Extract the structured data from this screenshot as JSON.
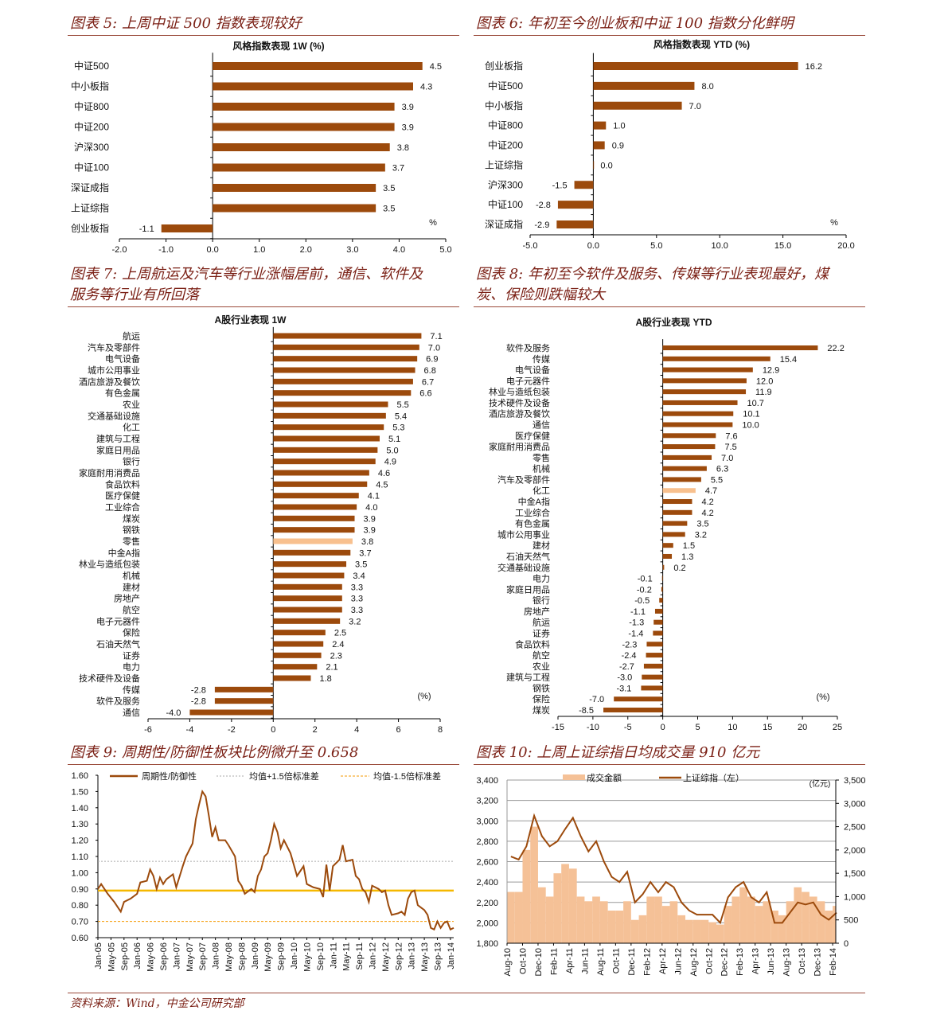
{
  "figures": {
    "f5": {
      "title": "图表 5: 上周中证 500 指数表现较好"
    },
    "f6": {
      "title": "图表 6: 年初至今创业板和中证 100 指数分化鲜明"
    },
    "f7": {
      "title_l1": "图表 7: 上周航运及汽车等行业涨幅居前，通信、软件及",
      "title_l2": "服务等行业有所回落"
    },
    "f8": {
      "title_l1": "图表 8: 年初至今软件及服务、传媒等行业表现最好，煤",
      "title_l2": "炭、保险则跌幅较大"
    },
    "f9": {
      "title": "图表 9: 周期性/防御性板块比例微升至 0.658"
    },
    "f10": {
      "title": "图表 10: 上周上证综指日均成交量 910 亿元"
    }
  },
  "footer": "资料来源：Wind，中金公司研究部",
  "colors": {
    "bar": "#9c4a0c",
    "highlight": "#f8c08e",
    "title": "#7a1f14",
    "mean_line": "#f5b800",
    "minus_line": "#f59a00",
    "plus_line": "#aaaaaa",
    "volume": "#f5c197"
  },
  "chart_data": [
    {
      "type": "bar",
      "orientation": "horizontal",
      "title": "风格指数表现 1W (%)",
      "unit": "%",
      "xlim": [
        -2.0,
        5.0
      ],
      "xticks": [
        "-2.0",
        "-1.0",
        "0.0",
        "1.0",
        "2.0",
        "3.0",
        "4.0",
        "5.0"
      ],
      "categories": [
        "中证500",
        "中小板指",
        "中证800",
        "中证200",
        "沪深300",
        "中证100",
        "深证成指",
        "上证综指",
        "创业板指"
      ],
      "values": [
        4.5,
        4.3,
        3.9,
        3.9,
        3.8,
        3.7,
        3.5,
        3.5,
        -1.1
      ],
      "labels": [
        "4.5",
        "4.3",
        "3.9",
        "3.9",
        "3.8",
        "3.7",
        "3.5",
        "3.5",
        "-1.1"
      ]
    },
    {
      "type": "bar",
      "orientation": "horizontal",
      "title": "风格指数表现 YTD (%)",
      "unit": "%",
      "xlim": [
        -5.0,
        20.0
      ],
      "xticks": [
        "-5.0",
        "0.0",
        "5.0",
        "10.0",
        "15.0",
        "20.0"
      ],
      "categories": [
        "创业板指",
        "中证500",
        "中小板指",
        "中证800",
        "中证200",
        "上证综指",
        "沪深300",
        "中证100",
        "深证成指"
      ],
      "values": [
        16.2,
        8.0,
        7.0,
        1.0,
        0.9,
        0.0,
        -1.5,
        -2.8,
        -2.9
      ],
      "labels": [
        "16.2",
        "8.0",
        "7.0",
        "1.0",
        "0.9",
        "0.0",
        "-1.5",
        "-2.8",
        "-2.9"
      ]
    },
    {
      "type": "bar",
      "orientation": "horizontal",
      "title": "A股行业表现 1W",
      "unit": "(%)",
      "xlim": [
        -6,
        8
      ],
      "xticks": [
        "-6",
        "-4",
        "-2",
        "0",
        "2",
        "4",
        "6",
        "8"
      ],
      "highlight": "零售",
      "categories": [
        "航运",
        "汽车及零部件",
        "电气设备",
        "城市公用事业",
        "酒店旅游及餐饮",
        "有色金属",
        "农业",
        "交通基础设施",
        "化工",
        "建筑与工程",
        "家庭日用品",
        "银行",
        "家庭耐用消费品",
        "食品饮料",
        "医疗保健",
        "工业综合",
        "煤炭",
        "钢铁",
        "零售",
        "中金A指",
        "林业与造纸包装",
        "机械",
        "建材",
        "房地产",
        "航空",
        "电子元器件",
        "保险",
        "石油天然气",
        "证券",
        "电力",
        "技术硬件及设备",
        "传媒",
        "软件及服务",
        "通信"
      ],
      "values": [
        7.1,
        7.0,
        6.9,
        6.8,
        6.7,
        6.6,
        5.5,
        5.4,
        5.3,
        5.1,
        5.0,
        4.9,
        4.6,
        4.5,
        4.1,
        4.0,
        3.9,
        3.9,
        3.8,
        3.7,
        3.5,
        3.4,
        3.3,
        3.3,
        3.3,
        3.2,
        2.5,
        2.4,
        2.3,
        2.1,
        1.8,
        -2.8,
        -2.8,
        -4.0
      ],
      "labels": [
        "7.1",
        "7.0",
        "6.9",
        "6.8",
        "6.7",
        "6.6",
        "5.5",
        "5.4",
        "5.3",
        "5.1",
        "5.0",
        "4.9",
        "4.6",
        "4.5",
        "4.1",
        "4.0",
        "3.9",
        "3.9",
        "3.8",
        "3.7",
        "3.5",
        "3.4",
        "3.3",
        "3.3",
        "3.3",
        "3.2",
        "2.5",
        "2.4",
        "2.3",
        "2.1",
        "1.8",
        "-2.8",
        "-2.8",
        "-4.0"
      ]
    },
    {
      "type": "bar",
      "orientation": "horizontal",
      "title": "A股行业表现 YTD",
      "unit": "(%)",
      "xlim": [
        -15,
        25
      ],
      "xticks": [
        "-15",
        "-10",
        "-5",
        "0",
        "5",
        "10",
        "15",
        "20",
        "25"
      ],
      "highlight": "化工",
      "categories": [
        "软件及服务",
        "传媒",
        "电气设备",
        "电子元器件",
        "林业与造纸包装",
        "技术硬件及设备",
        "酒店旅游及餐饮",
        "通信",
        "医疗保健",
        "家庭耐用消费品",
        "零售",
        "机械",
        "汽车及零部件",
        "化工",
        "中金A指",
        "工业综合",
        "有色金属",
        "城市公用事业",
        "建材",
        "石油天然气",
        "交通基础设施",
        "电力",
        "家庭日用品",
        "银行",
        "房地产",
        "航运",
        "证券",
        "食品饮料",
        "航空",
        "农业",
        "建筑与工程",
        "钢铁",
        "保险",
        "煤炭"
      ],
      "values": [
        22.2,
        15.4,
        12.9,
        12.0,
        11.9,
        10.7,
        10.1,
        10.0,
        7.6,
        7.5,
        7.0,
        6.3,
        5.5,
        4.7,
        4.2,
        4.2,
        3.5,
        3.2,
        1.5,
        1.3,
        0.2,
        -0.1,
        -0.2,
        -0.5,
        -1.1,
        -1.3,
        -1.4,
        -2.3,
        -2.4,
        -2.7,
        -3.0,
        -3.1,
        -7.0,
        -8.5
      ],
      "labels": [
        "22.2",
        "15.4",
        "12.9",
        "12.0",
        "11.9",
        "10.7",
        "10.1",
        "10.0",
        "7.6",
        "7.5",
        "7.0",
        "6.3",
        "5.5",
        "4.7",
        "4.2",
        "4.2",
        "3.5",
        "3.2",
        "1.5",
        "1.3",
        "0.2",
        "-0.1",
        "-0.2",
        "-0.5",
        "-1.1",
        "-1.3",
        "-1.4",
        "-2.3",
        "-2.4",
        "-2.7",
        "-3.0",
        "-3.1",
        "-7.0",
        "-8.5"
      ]
    },
    {
      "type": "line",
      "ylim": [
        0.6,
        1.6
      ],
      "yticks": [
        "0.60",
        "0.70",
        "0.80",
        "0.90",
        "1.00",
        "1.10",
        "1.20",
        "1.30",
        "1.40",
        "1.50",
        "1.60"
      ],
      "xticks": [
        "Jan-05",
        "May-05",
        "Sep-05",
        "Jan-06",
        "May-06",
        "Sep-06",
        "Jan-07",
        "May-07",
        "Sep-07",
        "Jan-08",
        "May-08",
        "Sep-08",
        "Jan-09",
        "May-09",
        "Sep-09",
        "Jan-10",
        "May-10",
        "Sep-10",
        "Jan-11",
        "May-11",
        "Sep-11",
        "Jan-12",
        "May-12",
        "Sep-12",
        "Jan-13",
        "May-13",
        "Sep-13",
        "Jan-14"
      ],
      "legend": [
        "周期性/防御性",
        "均值+1.5倍标准差",
        "均值-1.5倍标准差"
      ],
      "reference_lines": {
        "mean": 0.89,
        "plus_1_5sd": 1.07,
        "minus_1_5sd": 0.7
      },
      "series": [
        {
          "name": "周期性/防御性",
          "x": [
            "2005-01",
            "2005-02",
            "2005-04",
            "2005-06",
            "2005-08",
            "2005-09",
            "2005-11",
            "2006-01",
            "2006-02",
            "2006-04",
            "2006-05",
            "2006-06",
            "2006-07",
            "2006-08",
            "2006-09",
            "2006-10",
            "2006-12",
            "2007-01",
            "2007-03",
            "2007-04",
            "2007-06",
            "2007-07",
            "2007-08",
            "2007-09",
            "2007-10",
            "2007-11",
            "2007-12",
            "2008-01",
            "2008-02",
            "2008-04",
            "2008-05",
            "2008-07",
            "2008-08",
            "2008-09",
            "2008-10",
            "2008-12",
            "2009-01",
            "2009-02",
            "2009-03",
            "2009-04",
            "2009-05",
            "2009-06",
            "2009-07",
            "2009-08",
            "2009-09",
            "2009-10",
            "2009-12",
            "2010-01",
            "2010-02",
            "2010-04",
            "2010-05",
            "2010-07",
            "2010-09",
            "2010-10",
            "2010-11",
            "2010-12",
            "2011-01",
            "2011-03",
            "2011-04",
            "2011-05",
            "2011-07",
            "2011-08",
            "2011-09",
            "2011-10",
            "2011-11",
            "2011-12",
            "2012-01",
            "2012-03",
            "2012-04",
            "2012-05",
            "2012-06",
            "2012-07",
            "2012-09",
            "2012-10",
            "2012-11",
            "2012-12",
            "2013-01",
            "2013-02",
            "2013-03",
            "2013-05",
            "2013-06",
            "2013-07",
            "2013-08",
            "2013-09",
            "2013-10",
            "2013-11",
            "2013-12",
            "2014-01",
            "2014-02"
          ],
          "y": [
            0.9,
            0.93,
            0.87,
            0.82,
            0.76,
            0.82,
            0.84,
            0.87,
            0.94,
            0.95,
            1.02,
            0.98,
            0.9,
            0.97,
            0.93,
            0.96,
            0.99,
            0.91,
            1.04,
            1.1,
            1.18,
            1.33,
            1.42,
            1.5,
            1.47,
            1.35,
            1.22,
            1.28,
            1.2,
            1.2,
            1.17,
            1.1,
            0.95,
            0.92,
            0.87,
            0.9,
            0.88,
            0.98,
            1.02,
            1.1,
            1.12,
            1.2,
            1.3,
            1.25,
            1.15,
            1.2,
            1.12,
            1.05,
            0.98,
            1.04,
            0.93,
            0.91,
            0.9,
            0.85,
            1.05,
            0.89,
            1.04,
            1.08,
            1.17,
            1.07,
            1.08,
            0.98,
            0.96,
            0.9,
            0.88,
            0.82,
            0.92,
            0.9,
            0.88,
            0.89,
            0.8,
            0.74,
            0.75,
            0.76,
            0.74,
            0.84,
            0.88,
            0.89,
            0.8,
            0.77,
            0.74,
            0.66,
            0.65,
            0.7,
            0.66,
            0.69,
            0.7,
            0.65,
            0.66
          ]
        }
      ]
    },
    {
      "type": "line+bar",
      "ylim_left": [
        1800,
        3400
      ],
      "ylim_right": [
        0,
        3500
      ],
      "right_unit": "(亿元)",
      "yticks_left": [
        "1,800",
        "2,000",
        "2,200",
        "2,400",
        "2,600",
        "2,800",
        "3,000",
        "3,200",
        "3,400"
      ],
      "yticks_right": [
        "0",
        "500",
        "1,000",
        "1,500",
        "2,000",
        "2,500",
        "3,000",
        "3,500"
      ],
      "xticks": [
        "Aug-10",
        "Oct-10",
        "Dec-10",
        "Feb-11",
        "Apr-11",
        "Jun-11",
        "Aug-11",
        "Oct-11",
        "Dec-11",
        "Feb-12",
        "Apr-12",
        "Jun-12",
        "Aug-12",
        "Oct-12",
        "Dec-12",
        "Feb-13",
        "Apr-13",
        "Jun-13",
        "Aug-13",
        "Oct-13",
        "Dec-13",
        "Feb-14"
      ],
      "legend": [
        "成交金额",
        "上证综指（左）"
      ],
      "x": [
        "2010-08",
        "2010-09",
        "2010-10",
        "2010-11",
        "2010-12",
        "2011-01",
        "2011-02",
        "2011-03",
        "2011-04",
        "2011-05",
        "2011-06",
        "2011-07",
        "2011-08",
        "2011-09",
        "2011-10",
        "2011-11",
        "2011-12",
        "2012-01",
        "2012-02",
        "2012-03",
        "2012-04",
        "2012-05",
        "2012-06",
        "2012-07",
        "2012-08",
        "2012-09",
        "2012-10",
        "2012-11",
        "2012-12",
        "2013-01",
        "2013-02",
        "2013-03",
        "2013-04",
        "2013-05",
        "2013-06",
        "2013-07",
        "2013-08",
        "2013-09",
        "2013-10",
        "2013-11",
        "2013-12",
        "2014-01",
        "2014-02"
      ],
      "series": [
        {
          "name": "上证综指（左）",
          "axis": "left",
          "values": [
            2650,
            2620,
            2750,
            3050,
            2850,
            2750,
            2800,
            2920,
            3030,
            2850,
            2700,
            2800,
            2600,
            2450,
            2400,
            2500,
            2200,
            2280,
            2400,
            2300,
            2400,
            2350,
            2200,
            2120,
            2080,
            2080,
            2080,
            2000,
            2250,
            2350,
            2400,
            2250,
            2200,
            2300,
            2000,
            2000,
            2100,
            2200,
            2180,
            2200,
            2080,
            2030,
            2100
          ]
        },
        {
          "name": "成交金额",
          "axis": "right",
          "values": [
            1100,
            1100,
            2000,
            2500,
            1200,
            1000,
            1500,
            1700,
            1600,
            1000,
            900,
            1000,
            900,
            700,
            700,
            900,
            500,
            600,
            1000,
            1000,
            800,
            900,
            600,
            500,
            500,
            500,
            450,
            400,
            800,
            1000,
            1200,
            1000,
            800,
            900,
            700,
            600,
            900,
            1200,
            1100,
            1000,
            900,
            700,
            800
          ]
        }
      ]
    }
  ]
}
